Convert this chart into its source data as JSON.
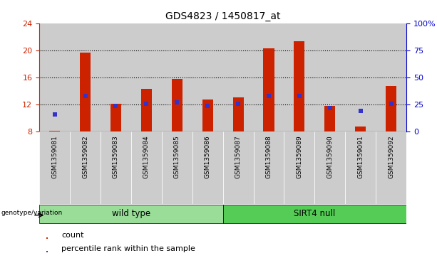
{
  "title": "GDS4823 / 1450817_at",
  "samples": [
    "GSM1359081",
    "GSM1359082",
    "GSM1359083",
    "GSM1359084",
    "GSM1359085",
    "GSM1359086",
    "GSM1359087",
    "GSM1359088",
    "GSM1359089",
    "GSM1359090",
    "GSM1359091",
    "GSM1359092"
  ],
  "count_values": [
    8.1,
    19.7,
    12.1,
    14.3,
    15.8,
    12.7,
    13.1,
    20.3,
    21.3,
    11.8,
    8.7,
    14.7
  ],
  "percentile_values": [
    10.5,
    13.3,
    11.8,
    12.1,
    12.3,
    11.8,
    12.1,
    13.3,
    13.3,
    11.5,
    11.1,
    12.1
  ],
  "ylim_left": [
    8,
    24
  ],
  "ylim_right": [
    0,
    100
  ],
  "yticks_left": [
    8,
    12,
    16,
    20,
    24
  ],
  "yticks_right": [
    0,
    25,
    50,
    75,
    100
  ],
  "yticklabels_right": [
    "0",
    "25",
    "50",
    "75",
    "100%"
  ],
  "bar_bottom": 8,
  "bar_color": "#cc2200",
  "percentile_color": "#3333cc",
  "bg_plot": "#ffffff",
  "col_bg_color": "#cccccc",
  "group1_label": "wild type",
  "group2_label": "SIRT4 null",
  "group1_color": "#99dd99",
  "group2_color": "#55cc55",
  "group1_indices": [
    0,
    1,
    2,
    3,
    4,
    5
  ],
  "group2_indices": [
    6,
    7,
    8,
    9,
    10,
    11
  ],
  "legend_count_label": "count",
  "legend_pct_label": "percentile rank within the sample",
  "genotype_label": "genotype/variation",
  "left_tick_color": "#cc2200",
  "right_tick_color": "#0000cc",
  "bar_width": 0.35,
  "left_spine_color": "#cc2200",
  "right_spine_color": "#0000cc"
}
